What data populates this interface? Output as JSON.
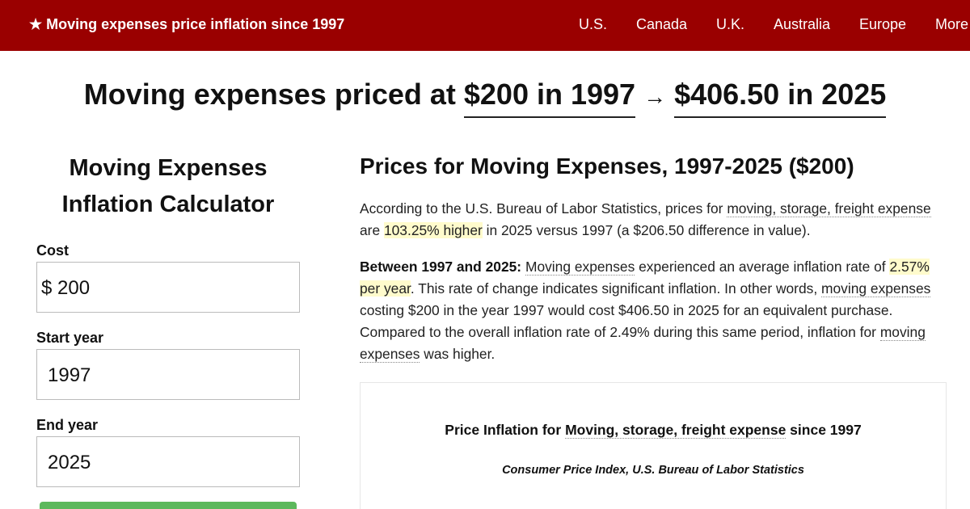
{
  "header": {
    "brand": "★ Moving expenses price inflation since 1997",
    "nav": [
      "U.S.",
      "Canada",
      "U.K.",
      "Australia",
      "Europe",
      "More"
    ]
  },
  "headline": {
    "prefix": "Moving expenses priced at",
    "from": "$200 in 1997",
    "arrow": "→",
    "to": "$406.50 in 2025"
  },
  "calculator": {
    "title": "Moving Expenses Inflation Calculator",
    "cost_label": "Cost",
    "currency_symbol": "$",
    "cost_value": "200",
    "start_label": "Start year",
    "start_value": "1997",
    "end_label": "End year",
    "end_value": "2025"
  },
  "article": {
    "title": "Prices for Moving Expenses, 1997-2025 ($200)",
    "p1": {
      "t1": "According to the U.S. Bureau of Labor Statistics, prices for ",
      "link": "moving, storage, freight expense",
      "t2": " are ",
      "highlight": "103.25% higher",
      "t3": " in 2025 versus 1997 (a $206.50 difference in value)."
    },
    "p2": {
      "bold": "Between 1997 and 2025:",
      "link1": "Moving expenses",
      "t1": " experienced an average inflation rate of ",
      "highlight": "2.57% per year",
      "t2": ". This rate of change indicates significant inflation. In other words, ",
      "link2": "moving expenses",
      "t3": " costing $200 in the year 1997 would cost $406.50 in 2025 for an equivalent purchase. Compared to the overall inflation rate of 2.49% during this same period, inflation for ",
      "link3": "moving expenses",
      "t4": " was higher."
    }
  },
  "chart": {
    "title_prefix": "Price Inflation for ",
    "title_link": "Moving, storage, freight expense",
    "title_suffix": " since 1997",
    "subtitle": "Consumer Price Index, U.S. Bureau of Labor Statistics"
  }
}
